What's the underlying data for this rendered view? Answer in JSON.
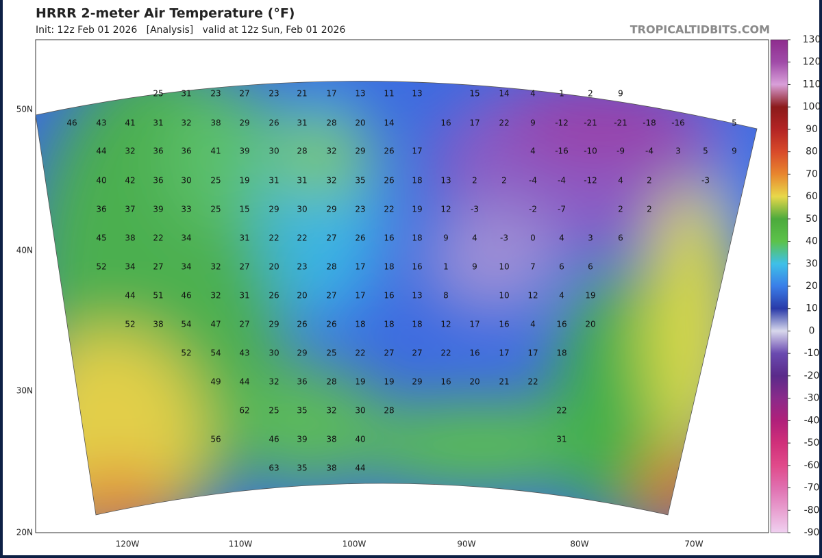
{
  "header": {
    "title": "HRRR 2-meter Air Temperature (°F)",
    "subtitle": "Init: 12z Feb 01 2026   [Analysis]   valid at 12z Sun, Feb 01 2026",
    "watermark": "TROPICALTIDBITS.COM"
  },
  "axes": {
    "lat": [
      "50N",
      "40N",
      "30N",
      "20N"
    ],
    "lon": [
      "120W",
      "110W",
      "100W",
      "90W",
      "80W",
      "70W"
    ]
  },
  "colorbar": {
    "ticks": [
      130,
      120,
      110,
      100,
      90,
      80,
      70,
      60,
      50,
      40,
      30,
      20,
      10,
      0,
      -10,
      -20,
      -30,
      -40,
      -50,
      -60,
      -70,
      -80,
      -90
    ],
    "colors": [
      "#8e2d8e",
      "#a04ba8",
      "#d9a0d9",
      "#8b1a1a",
      "#b32424",
      "#d84a2a",
      "#e8862e",
      "#e8d84a",
      "#4caa3c",
      "#5cc24a",
      "#3ec0e8",
      "#3a7ee8",
      "#2a3aa8",
      "#d8d8ec",
      "#6a4ab0",
      "#5a2a8a",
      "#8a2a8a",
      "#b0207a",
      "#d0307a",
      "#e04a8a",
      "#e070b0",
      "#e8a0d0",
      "#f0d0f0"
    ]
  },
  "stations": [
    [
      25,
      31,
      23,
      27,
      23,
      21,
      17,
      13,
      11,
      13,
      15,
      14,
      4,
      1,
      2,
      9
    ],
    [
      46,
      43,
      41,
      31,
      32,
      38,
      29,
      26,
      31,
      28,
      20,
      14,
      16,
      17,
      22,
      9,
      -12,
      -21,
      -21,
      -18,
      -16,
      5
    ],
    [
      44,
      32,
      36,
      36,
      41,
      39,
      30,
      28,
      32,
      29,
      26,
      17,
      4,
      -16,
      -10,
      -9,
      -4,
      3,
      5,
      9
    ],
    [
      40,
      42,
      36,
      30,
      25,
      19,
      31,
      31,
      32,
      35,
      26,
      18,
      13,
      2,
      2,
      -4,
      -4,
      -12,
      4,
      2,
      -3
    ],
    [
      36,
      37,
      39,
      33,
      25,
      15,
      29,
      30,
      29,
      23,
      22,
      19,
      12,
      -3,
      -2,
      -7,
      2,
      2
    ],
    [
      45,
      38,
      22,
      34,
      31,
      22,
      22,
      27,
      26,
      16,
      18,
      9,
      4,
      -3,
      0,
      4,
      3,
      6
    ],
    [
      52,
      34,
      27,
      34,
      32,
      27,
      20,
      23,
      28,
      17,
      18,
      16,
      1,
      9,
      10,
      7,
      6,
      6
    ],
    [
      44,
      51,
      46,
      32,
      31,
      26,
      20,
      27,
      17,
      16,
      13,
      8,
      10,
      12,
      4,
      19
    ],
    [
      52,
      38,
      54,
      47,
      27,
      29,
      26,
      26,
      18,
      18,
      18,
      12,
      17,
      16,
      4,
      16,
      20
    ],
    [
      52,
      54,
      43,
      30,
      29,
      25,
      22,
      27,
      27,
      22,
      16,
      17,
      17,
      18
    ],
    [
      49,
      44,
      32,
      36,
      28,
      19,
      19,
      29,
      16,
      20,
      21,
      22
    ],
    [
      62,
      25,
      35,
      32,
      30,
      28,
      22
    ],
    [
      56,
      46,
      39,
      38,
      40,
      31
    ],
    [
      63,
      35,
      38,
      44
    ]
  ]
}
